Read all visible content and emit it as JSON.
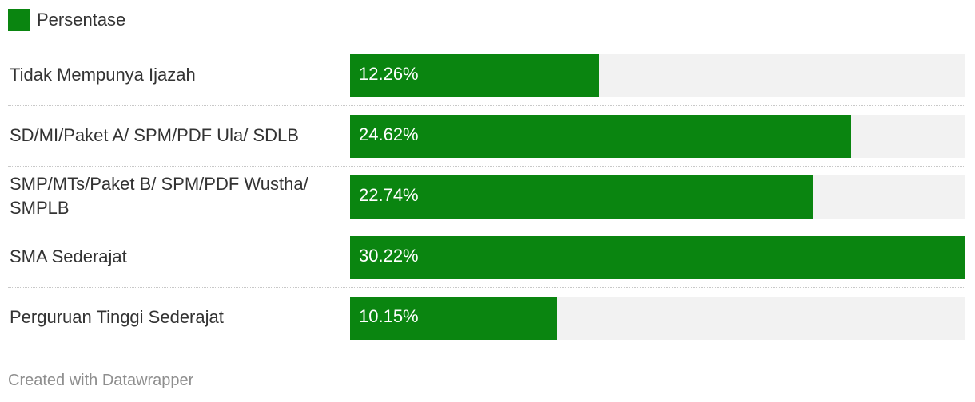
{
  "legend": {
    "label": "Persentase",
    "color": "#0a8510"
  },
  "chart_data": {
    "type": "bar",
    "orientation": "horizontal",
    "categories": [
      "Tidak Mempunya Ijazah",
      "SD/MI/Paket A/ SPM/PDF Ula/ SDLB",
      "SMP/MTs/Paket B/ SPM/PDF Wustha/ SMPLB",
      "SMA Sederajat",
      "Perguruan Tinggi Sederajat"
    ],
    "series": [
      {
        "name": "Persentase",
        "values": [
          12.26,
          24.62,
          22.74,
          30.22,
          10.15
        ],
        "labels": [
          "12.26%",
          "24.62%",
          "22.74%",
          "30.22%",
          "10.15%"
        ]
      }
    ],
    "xlim": [
      0,
      30.22
    ],
    "bar_color": "#0a8510",
    "track_color": "#f2f2f2"
  },
  "footer": {
    "credit": "Created with Datawrapper"
  }
}
